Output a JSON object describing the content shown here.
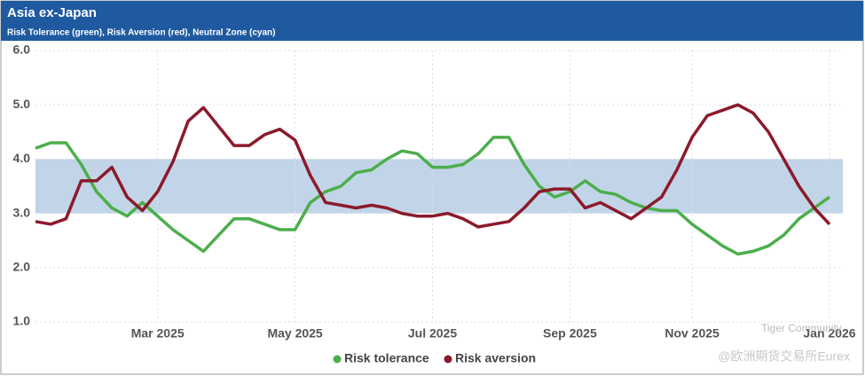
{
  "chart_data": {
    "type": "line",
    "title": "Asia ex-Japan",
    "subtitle": "Risk Tolerance (green), Risk Aversion (red), Neutral Zone (cyan)",
    "categories": [
      null,
      null,
      null,
      null,
      null,
      null,
      null,
      null,
      "Mar 2025",
      null,
      null,
      null,
      null,
      null,
      null,
      null,
      null,
      "May 2025",
      null,
      null,
      null,
      null,
      null,
      null,
      null,
      null,
      "Jul 2025",
      null,
      null,
      null,
      null,
      null,
      null,
      null,
      null,
      "Sep 2025",
      null,
      null,
      null,
      null,
      null,
      null,
      null,
      "Nov 2025",
      null,
      null,
      null,
      null,
      null,
      null,
      null,
      null,
      "Jan 2026"
    ],
    "series": [
      {
        "name": "Risk tolerance",
        "color": "#4cae4c",
        "values": [
          4.2,
          4.3,
          4.3,
          3.9,
          3.4,
          3.1,
          2.95,
          3.2,
          2.95,
          2.7,
          2.5,
          2.3,
          2.6,
          2.9,
          2.9,
          2.8,
          2.7,
          2.7,
          3.2,
          3.4,
          3.5,
          3.75,
          3.8,
          4.0,
          4.15,
          4.1,
          3.85,
          3.85,
          3.9,
          4.1,
          4.4,
          4.4,
          3.9,
          3.5,
          3.3,
          3.4,
          3.6,
          3.4,
          3.35,
          3.2,
          3.1,
          3.05,
          3.05,
          2.8,
          2.6,
          2.4,
          2.25,
          2.3,
          2.4,
          2.6,
          2.9,
          3.1,
          3.3
        ]
      },
      {
        "name": "Risk aversion",
        "color": "#8b1a2b",
        "values": [
          2.85,
          2.8,
          2.9,
          3.6,
          3.6,
          3.85,
          3.3,
          3.05,
          3.4,
          3.95,
          4.7,
          4.95,
          4.6,
          4.25,
          4.25,
          4.45,
          4.55,
          4.35,
          3.7,
          3.2,
          3.15,
          3.1,
          3.15,
          3.1,
          3.0,
          2.95,
          2.95,
          3.0,
          2.9,
          2.75,
          2.8,
          2.85,
          3.1,
          3.4,
          3.45,
          3.45,
          3.1,
          3.2,
          3.05,
          2.9,
          3.1,
          3.3,
          3.8,
          4.4,
          4.8,
          4.9,
          5.0,
          4.85,
          4.5,
          4.0,
          3.5,
          3.1,
          2.8
        ]
      }
    ],
    "neutral_zone": [
      3,
      4
    ],
    "neutral_zone_color": "#c2d5e8",
    "ylim": [
      1,
      6
    ],
    "yticks": [
      {
        "value": 1,
        "label": "1.0"
      },
      {
        "value": 2,
        "label": "2.0"
      },
      {
        "value": 3,
        "label": "3.0"
      },
      {
        "value": 4,
        "label": "4.0"
      },
      {
        "value": 5,
        "label": "5.0"
      },
      {
        "value": 6,
        "label": "6.0"
      }
    ],
    "grid": true,
    "legend": "bottom",
    "watermark": [
      "Tiger Community",
      "@欧洲期货交易所Eurex"
    ]
  }
}
